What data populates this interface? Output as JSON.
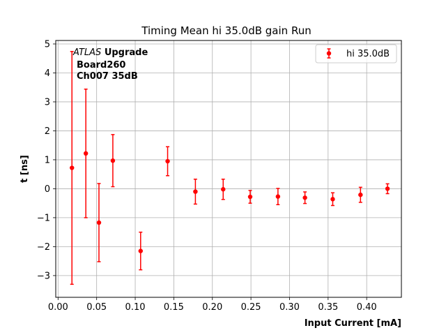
{
  "chart_data": {
    "type": "scatter",
    "title": "Timing Mean hi 35.0dB gain Run",
    "xlabel": "Input Current [mA]",
    "ylabel": "t [ns]",
    "xlim": [
      -0.003,
      0.445
    ],
    "ylim": [
      -3.75,
      5.12
    ],
    "xticks": [
      0.0,
      0.05,
      0.1,
      0.15,
      0.2,
      0.25,
      0.3,
      0.35,
      0.4
    ],
    "xtick_labels": [
      "0.00",
      "0.05",
      "0.10",
      "0.15",
      "0.20",
      "0.25",
      "0.30",
      "0.35",
      "0.40"
    ],
    "yticks": [
      -3,
      -2,
      -1,
      0,
      1,
      2,
      3,
      4,
      5
    ],
    "ytick_labels": [
      "−3",
      "−2",
      "−1",
      "0",
      "1",
      "2",
      "3",
      "4",
      "5"
    ],
    "grid": true,
    "legend_position": "top-right",
    "annotation": {
      "line1_italic": "ATLAS",
      "line1_bold": "Upgrade",
      "line2": "Board260",
      "line3": "Ch007 35dB"
    },
    "series": [
      {
        "name": "hi 35.0dB",
        "color": "#ff0000",
        "x": [
          0.018,
          0.036,
          0.053,
          0.071,
          0.107,
          0.142,
          0.178,
          0.214,
          0.249,
          0.285,
          0.32,
          0.356,
          0.392,
          0.427
        ],
        "y": [
          0.72,
          1.22,
          -1.17,
          0.97,
          -2.15,
          0.95,
          -0.1,
          -0.02,
          -0.28,
          -0.27,
          -0.31,
          -0.36,
          -0.21,
          0.0
        ],
        "yerr": [
          4.02,
          2.22,
          1.35,
          0.9,
          0.65,
          0.5,
          0.43,
          0.35,
          0.22,
          0.28,
          0.2,
          0.22,
          0.26,
          0.17
        ]
      }
    ]
  }
}
